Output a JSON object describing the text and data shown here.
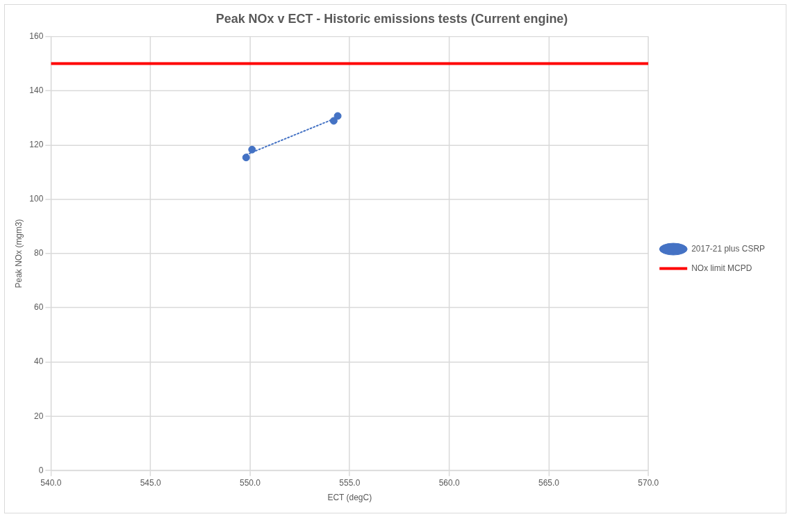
{
  "chart_data": {
    "type": "scatter",
    "title": "Peak NOx v ECT - Historic emissions tests (Current engine)",
    "xlabel": "ECT (degC)",
    "ylabel": "Peak NOx (mgm3)",
    "series": [
      {
        "name": "2017-21 plus CSRP",
        "color": "#4472c4",
        "x": [
          549.8,
          550.1,
          554.2,
          554.4
        ],
        "values": [
          115.4,
          118.3,
          128.9,
          130.7
        ],
        "marker": "circle"
      },
      {
        "type": "line",
        "color": "#4472c4",
        "x": [
          549.8,
          554.4
        ],
        "values": [
          116.4,
          130.2
        ],
        "marker": "none",
        "line_style": "dotted"
      }
    ],
    "ref_lines": [
      {
        "axis": "y",
        "value": 150,
        "label": "NOx limit MCPD",
        "color": "#ff0000"
      }
    ],
    "xlim": [
      540,
      570
    ],
    "xticks": [
      {
        "value": 540,
        "label": "540.0"
      },
      {
        "value": 545,
        "label": "545.0"
      },
      {
        "value": 550,
        "label": "550.0"
      },
      {
        "value": 555,
        "label": "555.0"
      },
      {
        "value": 560,
        "label": "560.0"
      },
      {
        "value": 565,
        "label": "565.0"
      },
      {
        "value": 570,
        "label": "570.0"
      }
    ],
    "ylim": [
      0,
      160
    ],
    "yticks": [
      0,
      20,
      40,
      60,
      80,
      100,
      120,
      140,
      160
    ],
    "grid": true,
    "legend": "right"
  }
}
